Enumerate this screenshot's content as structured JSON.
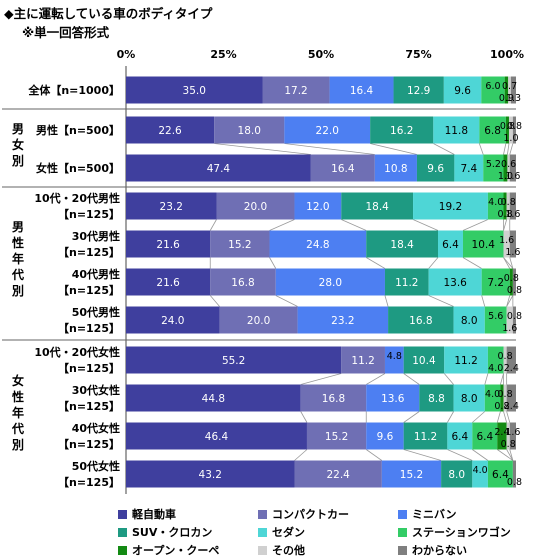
{
  "title": "◆主に運転している車のボディタイプ",
  "subtitle": "※単一回答形式",
  "chart_data": {
    "type": "bar",
    "orientation": "horizontal",
    "stacked": true,
    "percent": true,
    "xlim": [
      0,
      100
    ],
    "x_ticks": [
      "0%",
      "25%",
      "50%",
      "75%",
      "100%"
    ],
    "grid": false,
    "legend_position": "bottom",
    "groups": [
      {
        "label": "",
        "rows": [
          0
        ]
      },
      {
        "label": "男女別",
        "rows": [
          1,
          2
        ]
      },
      {
        "label": "男性年代別",
        "rows": [
          3,
          4,
          5,
          6
        ]
      },
      {
        "label": "女性年代別",
        "rows": [
          7,
          8,
          9,
          10
        ]
      }
    ],
    "categories": [
      [
        "全体【n=1000】"
      ],
      [
        "男性【n=500】"
      ],
      [
        "女性【n=500】"
      ],
      [
        "10代・20代男性",
        "【n=125】"
      ],
      [
        "30代男性",
        "【n=125】"
      ],
      [
        "40代男性",
        "【n=125】"
      ],
      [
        "50代男性",
        "【n=125】"
      ],
      [
        "10代・20代女性",
        "【n=125】"
      ],
      [
        "30代女性",
        "【n=125】"
      ],
      [
        "40代女性",
        "【n=125】"
      ],
      [
        "50代女性",
        "【n=125】"
      ]
    ],
    "series": [
      {
        "name": "軽自動車",
        "color": "#3f3f9e",
        "values": [
          35.0,
          22.6,
          47.4,
          23.2,
          21.6,
          21.6,
          24.0,
          55.2,
          44.8,
          46.4,
          43.2
        ]
      },
      {
        "name": "コンパクトカー",
        "color": "#6f6fb4",
        "values": [
          17.2,
          18.0,
          16.4,
          20.0,
          15.2,
          16.8,
          20.0,
          11.2,
          16.8,
          15.2,
          22.4
        ]
      },
      {
        "name": "ミニバン",
        "color": "#4d7ff2",
        "values": [
          16.4,
          22.0,
          10.8,
          12.0,
          24.8,
          28.0,
          23.2,
          4.8,
          13.6,
          9.6,
          15.2
        ]
      },
      {
        "name": "SUV・クロカン",
        "color": "#1e9a82",
        "values": [
          12.9,
          16.2,
          9.6,
          18.4,
          18.4,
          11.2,
          16.8,
          10.4,
          8.8,
          11.2,
          8.0
        ]
      },
      {
        "name": "セダン",
        "color": "#4ed6d6",
        "values": [
          9.6,
          11.8,
          7.4,
          19.2,
          6.4,
          13.6,
          8.0,
          11.2,
          8.0,
          6.4,
          4.0
        ]
      },
      {
        "name": "ステーションワゴン",
        "color": "#33cc66",
        "values": [
          6.0,
          6.8,
          5.2,
          4.0,
          10.4,
          7.2,
          5.6,
          4.0,
          4.0,
          6.4,
          6.4
        ]
      },
      {
        "name": "オープン・クーペ",
        "color": "#138a13",
        "values": [
          0.9,
          0.8,
          1.0,
          0.8,
          0.0,
          0.8,
          0.0,
          0.0,
          0.8,
          2.4,
          0.0
        ]
      },
      {
        "name": "その他",
        "color": "#d0d0d0",
        "values": [
          0.7,
          1.0,
          0.6,
          0.8,
          1.6,
          0.0,
          1.6,
          0.8,
          0.8,
          0.8,
          0.0
        ]
      },
      {
        "name": "わからない",
        "color": "#7f7f7f",
        "values": [
          1.3,
          0.8,
          1.6,
          1.6,
          1.6,
          0.8,
          0.8,
          2.4,
          2.4,
          1.6,
          0.8
        ]
      }
    ]
  }
}
